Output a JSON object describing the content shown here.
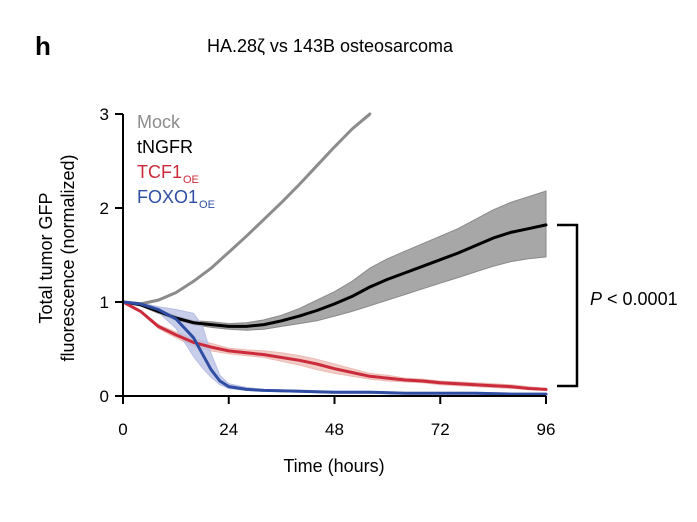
{
  "figure": {
    "panel_label": "h",
    "title": "HA.28ζ vs 143B osteosarcoma",
    "significance": {
      "italic": "P",
      "text": " < 0.0001"
    }
  },
  "chart_data": {
    "type": "line",
    "title": "HA.28ζ vs 143B osteosarcoma",
    "xlabel": "Time (hours)",
    "ylabel_lines": [
      "Total tumor GFP",
      "fluorescence (normalized)"
    ],
    "xlim": [
      0,
      96
    ],
    "ylim": [
      0,
      3
    ],
    "xticks": [
      0,
      24,
      48,
      72,
      96
    ],
    "yticks": [
      0,
      1,
      2,
      3
    ],
    "grid": false,
    "legend_position": "top-left",
    "series": [
      {
        "name": "Mock",
        "subscript": "",
        "color": "#8c8c8c",
        "band_color": "#c8c8c8",
        "x": [
          0,
          4,
          8,
          12,
          16,
          20,
          24,
          28,
          32,
          36,
          40,
          44,
          48,
          52,
          56
        ],
        "y": [
          1.0,
          0.98,
          1.02,
          1.1,
          1.22,
          1.36,
          1.53,
          1.7,
          1.88,
          2.06,
          2.25,
          2.45,
          2.65,
          2.84,
          3.0
        ],
        "lower": [
          1.0,
          0.97,
          1.01,
          1.09,
          1.21,
          1.35,
          1.52,
          1.69,
          1.87,
          2.05,
          2.24,
          2.44,
          2.64,
          2.83,
          2.98
        ],
        "upper": [
          1.0,
          0.99,
          1.03,
          1.11,
          1.23,
          1.37,
          1.54,
          1.71,
          1.89,
          2.07,
          2.26,
          2.46,
          2.66,
          2.85,
          3.01
        ]
      },
      {
        "name": "tNGFR",
        "subscript": "",
        "color": "#000000",
        "band_color": "#8a8a8a",
        "x": [
          0,
          4,
          8,
          12,
          16,
          20,
          24,
          28,
          32,
          36,
          40,
          44,
          48,
          52,
          56,
          60,
          64,
          68,
          72,
          76,
          80,
          84,
          88,
          92,
          96
        ],
        "y": [
          1.0,
          0.97,
          0.9,
          0.83,
          0.78,
          0.76,
          0.74,
          0.74,
          0.76,
          0.8,
          0.85,
          0.91,
          0.98,
          1.06,
          1.16,
          1.24,
          1.31,
          1.38,
          1.45,
          1.52,
          1.6,
          1.68,
          1.74,
          1.78,
          1.82
        ],
        "lower": [
          1.0,
          0.96,
          0.88,
          0.81,
          0.76,
          0.73,
          0.71,
          0.7,
          0.71,
          0.74,
          0.77,
          0.8,
          0.85,
          0.9,
          0.96,
          1.02,
          1.08,
          1.14,
          1.2,
          1.26,
          1.32,
          1.38,
          1.43,
          1.46,
          1.48
        ],
        "upper": [
          1.0,
          0.98,
          0.92,
          0.85,
          0.8,
          0.79,
          0.77,
          0.78,
          0.81,
          0.86,
          0.93,
          1.02,
          1.11,
          1.22,
          1.36,
          1.46,
          1.54,
          1.62,
          1.7,
          1.78,
          1.88,
          1.98,
          2.06,
          2.12,
          2.18
        ]
      },
      {
        "name": "TCF1",
        "subscript": "OE",
        "color": "#cc2b3c",
        "band_color": "#ecbab3",
        "x": [
          0,
          4,
          8,
          12,
          16,
          20,
          24,
          28,
          32,
          36,
          40,
          44,
          48,
          52,
          56,
          60,
          64,
          68,
          72,
          76,
          80,
          84,
          88,
          92,
          96
        ],
        "y": [
          1.0,
          0.9,
          0.74,
          0.65,
          0.57,
          0.52,
          0.48,
          0.46,
          0.44,
          0.41,
          0.38,
          0.34,
          0.29,
          0.25,
          0.21,
          0.19,
          0.17,
          0.16,
          0.14,
          0.13,
          0.12,
          0.11,
          0.1,
          0.08,
          0.07
        ],
        "lower": [
          1.0,
          0.89,
          0.72,
          0.62,
          0.53,
          0.48,
          0.45,
          0.43,
          0.41,
          0.37,
          0.33,
          0.28,
          0.24,
          0.21,
          0.18,
          0.16,
          0.15,
          0.14,
          0.12,
          0.11,
          0.1,
          0.09,
          0.08,
          0.07,
          0.06
        ],
        "upper": [
          1.0,
          0.91,
          0.76,
          0.68,
          0.61,
          0.56,
          0.51,
          0.49,
          0.48,
          0.46,
          0.43,
          0.39,
          0.34,
          0.29,
          0.24,
          0.22,
          0.19,
          0.18,
          0.16,
          0.15,
          0.14,
          0.13,
          0.12,
          0.1,
          0.08
        ]
      },
      {
        "name": "FOXO1",
        "subscript": "OE",
        "color": "#2f4ea3",
        "band_color": "#b6bde3",
        "x": [
          0,
          4,
          8,
          12,
          16,
          18,
          20,
          22,
          24,
          28,
          32,
          40,
          48,
          56,
          64,
          72,
          80,
          88,
          96
        ],
        "y": [
          1.0,
          0.98,
          0.92,
          0.82,
          0.62,
          0.45,
          0.28,
          0.16,
          0.1,
          0.07,
          0.06,
          0.05,
          0.04,
          0.04,
          0.03,
          0.03,
          0.03,
          0.02,
          0.02
        ],
        "lower": [
          1.0,
          0.97,
          0.89,
          0.72,
          0.42,
          0.3,
          0.2,
          0.12,
          0.08,
          0.06,
          0.05,
          0.04,
          0.03,
          0.03,
          0.02,
          0.02,
          0.02,
          0.01,
          0.01
        ],
        "upper": [
          1.0,
          0.99,
          0.95,
          0.92,
          0.88,
          0.75,
          0.45,
          0.22,
          0.13,
          0.09,
          0.07,
          0.06,
          0.05,
          0.05,
          0.04,
          0.04,
          0.04,
          0.03,
          0.03
        ]
      }
    ]
  }
}
